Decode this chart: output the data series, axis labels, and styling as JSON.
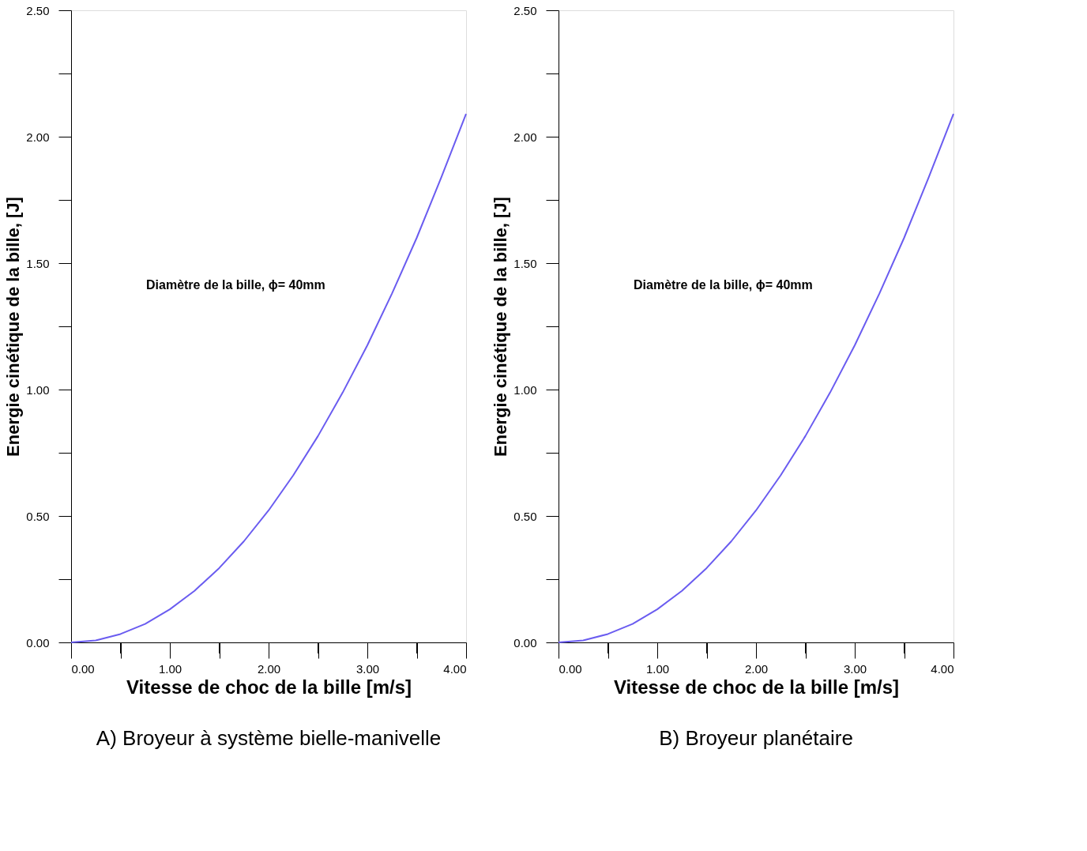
{
  "chart_data": [
    {
      "type": "line",
      "xlabel": "Vitesse de choc de la bille [m/s]",
      "ylabel": "Energie cinétique de la bille, [J]",
      "x": [
        0,
        0.25,
        0.5,
        0.75,
        1,
        1.25,
        1.5,
        1.75,
        2,
        2.25,
        2.5,
        2.75,
        3,
        3.25,
        3.5,
        3.75,
        4
      ],
      "series": [
        {
          "color": "#6a5cf0",
          "values": [
            0,
            0.008,
            0.033,
            0.073,
            0.131,
            0.204,
            0.294,
            0.4,
            0.522,
            0.661,
            0.816,
            0.988,
            1.175,
            1.38,
            1.6,
            1.84,
            2.09
          ]
        }
      ],
      "xlim": [
        0,
        4
      ],
      "ylim": [
        0,
        2.5
      ],
      "xticks": [
        {
          "value": 0,
          "label": "0.00"
        },
        {
          "value": 0.5,
          "label": null
        },
        {
          "value": 1,
          "label": "1.00"
        },
        {
          "value": 1.5,
          "label": null
        },
        {
          "value": 2,
          "label": "2.00"
        },
        {
          "value": 2.5,
          "label": null
        },
        {
          "value": 3,
          "label": "3.00"
        },
        {
          "value": 3.5,
          "label": null
        },
        {
          "value": 4,
          "label": "4.00"
        }
      ],
      "yticks": [
        {
          "value": 0,
          "label": "0.00"
        },
        {
          "value": 0.25,
          "label": null
        },
        {
          "value": 0.5,
          "label": "0.50"
        },
        {
          "value": 0.75,
          "label": null
        },
        {
          "value": 1,
          "label": "1.00"
        },
        {
          "value": 1.25,
          "label": null
        },
        {
          "value": 1.5,
          "label": "1.50"
        },
        {
          "value": 1.75,
          "label": null
        },
        {
          "value": 2,
          "label": "2.00"
        },
        {
          "value": 2.25,
          "label": null
        },
        {
          "value": 2.5,
          "label": "2.50"
        }
      ],
      "annotations": [
        "Diamètre de la bille, ϕ= 40mm",
        "A)  Broyeur à système bielle-manivelle"
      ],
      "grid": false,
      "marker": "none",
      "line_style": "solid"
    },
    {
      "type": "line",
      "xlabel": "Vitesse de choc de la bille [m/s]",
      "ylabel": "Energie cinétique de la bille, [J]",
      "x": [
        0,
        0.25,
        0.5,
        0.75,
        1,
        1.25,
        1.5,
        1.75,
        2,
        2.25,
        2.5,
        2.75,
        3,
        3.25,
        3.5,
        3.75,
        4
      ],
      "series": [
        {
          "color": "#6a5cf0",
          "values": [
            0,
            0.008,
            0.033,
            0.073,
            0.131,
            0.204,
            0.294,
            0.4,
            0.522,
            0.661,
            0.816,
            0.988,
            1.175,
            1.38,
            1.6,
            1.84,
            2.09
          ]
        }
      ],
      "xlim": [
        0,
        4
      ],
      "ylim": [
        0,
        2.5
      ],
      "xticks": [
        {
          "value": 0,
          "label": "0.00"
        },
        {
          "value": 0.5,
          "label": null
        },
        {
          "value": 1,
          "label": "1.00"
        },
        {
          "value": 1.5,
          "label": null
        },
        {
          "value": 2,
          "label": "2.00"
        },
        {
          "value": 2.5,
          "label": null
        },
        {
          "value": 3,
          "label": "3.00"
        },
        {
          "value": 3.5,
          "label": null
        },
        {
          "value": 4,
          "label": "4.00"
        }
      ],
      "yticks": [
        {
          "value": 0,
          "label": "0.00"
        },
        {
          "value": 0.25,
          "label": null
        },
        {
          "value": 0.5,
          "label": "0.50"
        },
        {
          "value": 0.75,
          "label": null
        },
        {
          "value": 1,
          "label": "1.00"
        },
        {
          "value": 1.25,
          "label": null
        },
        {
          "value": 1.5,
          "label": "1.50"
        },
        {
          "value": 1.75,
          "label": null
        },
        {
          "value": 2,
          "label": "2.00"
        },
        {
          "value": 2.25,
          "label": null
        },
        {
          "value": 2.5,
          "label": "2.50"
        }
      ],
      "annotations": [
        "Diamètre de la bille, ϕ= 40mm",
        "B)   Broyeur planétaire"
      ],
      "grid": false,
      "marker": "none",
      "line_style": "solid"
    }
  ]
}
